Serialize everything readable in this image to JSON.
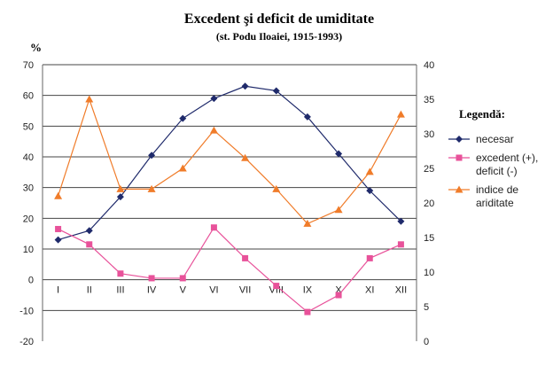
{
  "chart_data": {
    "type": "line",
    "title": "Excedent şi deficit de umiditate",
    "subtitle": "(st. Podu Iloaiei, 1915-1993)",
    "ylabel": "%",
    "categories": [
      "I",
      "II",
      "III",
      "IV",
      "V",
      "VI",
      "VII",
      "VIII",
      "IX",
      "X",
      "XI",
      "XII"
    ],
    "y_left": {
      "ylim": [
        -20,
        70
      ],
      "ticks": [
        -20,
        -10,
        0,
        10,
        20,
        30,
        40,
        50,
        60,
        70
      ]
    },
    "y_right": {
      "ylim": [
        0,
        40
      ],
      "ticks": [
        0,
        5,
        10,
        15,
        20,
        25,
        30,
        35,
        40
      ]
    },
    "grid": true,
    "legend": {
      "title": "Legendă:",
      "position": "right",
      "entries": [
        {
          "lines": [
            "necesar"
          ]
        },
        {
          "lines": [
            "excedent (+),",
            "deficit (-)"
          ]
        },
        {
          "lines": [
            "indice de",
            "ariditate"
          ]
        }
      ]
    },
    "series": [
      {
        "axis": "left",
        "color": "#1f2a6b",
        "marker": "diamond",
        "values": [
          13,
          16,
          27,
          40.5,
          52.5,
          59,
          63,
          61.5,
          53,
          41,
          29,
          19
        ]
      },
      {
        "axis": "left",
        "color": "#e8529a",
        "marker": "square",
        "values": [
          16.5,
          11.5,
          2,
          0.5,
          0.5,
          17,
          7,
          -2,
          -10.5,
          -5,
          7,
          11.5
        ]
      },
      {
        "axis": "right",
        "color": "#f07c2a",
        "marker": "triangle",
        "values": [
          21,
          35,
          22,
          22,
          25,
          30.5,
          26.5,
          22,
          17,
          19,
          24.5,
          32.8
        ]
      }
    ]
  }
}
